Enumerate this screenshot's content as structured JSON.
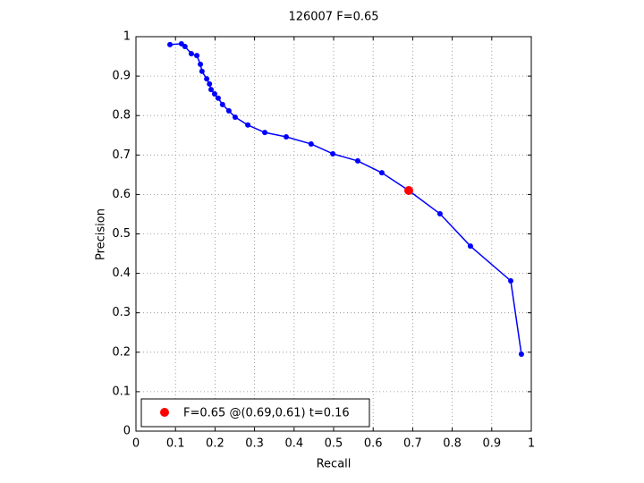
{
  "chart_data": {
    "type": "line",
    "title": "126007 F=0.65",
    "xlabel": "Recall",
    "ylabel": "Precision",
    "series": [
      {
        "color": "#0000ff",
        "x": [
          0.086,
          0.115,
          0.124,
          0.14,
          0.154,
          0.163,
          0.167,
          0.179,
          0.186,
          0.19,
          0.199,
          0.208,
          0.219,
          0.235,
          0.251,
          0.283,
          0.326,
          0.38,
          0.443,
          0.498,
          0.561,
          0.622,
          0.69,
          0.769,
          0.846,
          0.948,
          0.975
        ],
        "values": [
          0.98,
          0.982,
          0.975,
          0.957,
          0.952,
          0.93,
          0.912,
          0.893,
          0.88,
          0.866,
          0.855,
          0.844,
          0.828,
          0.812,
          0.796,
          0.776,
          0.757,
          0.746,
          0.728,
          0.703,
          0.685,
          0.655,
          0.61,
          0.551,
          0.469,
          0.381,
          0.195
        ]
      },
      {
        "name": "F=0.65 @(0.69,0.61) t=0.16",
        "color": "#ff0000",
        "x": [
          0.69
        ],
        "values": [
          0.61
        ]
      }
    ],
    "xlim": [
      0,
      1
    ],
    "ylim": [
      0,
      1
    ],
    "xticks": [
      0,
      0.1,
      0.2,
      0.3,
      0.4,
      0.5,
      0.6,
      0.7,
      0.8,
      0.9,
      1
    ],
    "yticks": [
      0,
      0.1,
      0.2,
      0.3,
      0.4,
      0.5,
      0.6,
      0.7,
      0.8,
      0.9,
      1
    ],
    "grid": true,
    "legend": "lower-left"
  }
}
